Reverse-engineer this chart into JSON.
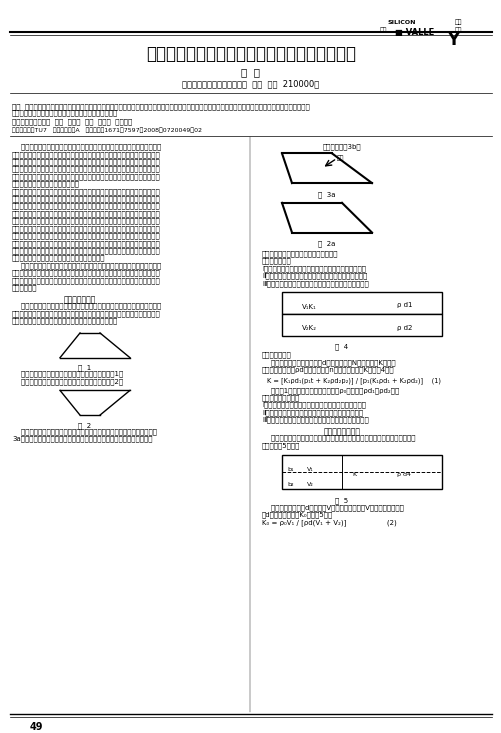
{
  "title": "公路工程施工中灌砂法试验压实度影响因素探究",
  "author": "田  家",
  "affiliation": "（南京西藏路桥工程有限公司  江苏  南京  210000）",
  "journal_name": "SILICON\nVALLE",
  "journal_cn": "工程\n科学",
  "journal_tag": "硅谷",
  "abstract_label": "【摘  要】",
  "abstract_text": "灌砂法试验是公路工程路基和基层（底基层）施工中现场压实度检测的标准方法，对试验操作过程中一些细节问题的注意有助于提高检测结果的准确性和可靠性，对真实反映公路工程质量具有重要的作用。",
  "keywords_label": "【关键词】",
  "keywords_text": "公路工程  施工  灌砂法  试验  压实度  影响因素",
  "classification": "中图分类号：TU7   文献标识码：A   文章编号：1671－7597【2008】0720049－02",
  "body_col1": [
    "    对于公路工程施工现场检测，压实度在路基土方和路面基层（底基层）中属于全检项目和关键项目，各级部门都给予了高度重视。为了反映工程项目压实质量，相继研究了不少检测方法，诸如环刀法、灌砂法、钻芯法、核子法等，各种方法都具有实际用处，都有优缺点，但单从精度来讲，灌砂法无疑为首选，所以灌砂法作为压实度检测的标准方法，适于在野视试验中采用。环刀法由于正假性控制困难，无法真实反映整个压实度",
    "的压实情况，即使在压实是中间取样也无法准确反映，这是由于整个压实层压密程度并非从上到下线性递减造成。另外，环刀法由于试样量平的重要，只适于细粒土的检测。对于钻芯法，由于钻芯过程中，需要先钻头进行冲击，要求对钻进进行冲液；从而要求在整个过程中进行冲水，客易导致试件含水量增大。而不适宜在需要通过检测试件含水量来检测压实度的工程项目中，仅适宜在无需检测含水量来检测压实度的适用范围及大量无机混合料路层（底基层）。对于核子法，由于采用的是同位素注检测土样密度和含水量，影响因素多，误差较大，只适于施工过程中快速评定，不适用各种验试验或成收试验。而对于灌砂法，除了精度高，可用作最试验检外，正有适用范围大的优点，仅不适于大孔洞或大孔隙材料的检测，而这些材料很少在现代公路工程中使用。",
    "    由上所述，灌砂法在现代公路工程施工中具有举足轻重的作用，必须认真掌握其使用过程和方法，并对其操作过程中各种影响因素进行熟悉和了解，避免因此而影响试验的准确性和可靠性，现就灌砂法试验过程中影响检测结果精度的因素进行探究。",
    "    一、量砂的影响",
    "    量砂是灌砂法试验过程中从不可少的材料。由于灌砂法是采用置换量进行检测，所以置换材料的密度对检测结果的精确至关重要，准确测量量砂的密度以及保持量砂密度在检测过程中的稳定性是确保检测结果准确"
  ],
  "body_col2_top": [
    "果最大，如图3b，"
  ],
  "fig2a_label": "图  2a",
  "fig2b_label": "图  3a",
  "fig3_text": [
    "如刚穿越检测层，此种情况规律发育定。",
    "上下层材料一致",
    "Ⅰ、若下层土样压实度大于上层，烙导检检测结果偏大。",
    "Ⅱ、若下层土样压实等于上层，烙对检测结果没有影响。",
    "Ⅲ、若下层土样压实度小于上层，烙导级检测结果偏小。"
  ],
  "fig4_label": "图  4",
  "fig4_rho1": "ρ d1",
  "fig4_rho2": "ρ d2",
  "fig4_v1k1": "V₁K₁",
  "fig4_v2k2": "V₂K₂",
  "col2_bottom": [
    "上下层材料不同",
    "    假设上层材料最大干密度为d，土样体积为N，压实度为K，下层材料最大干密度为ρd，土样体积为n，实测压实度为K。如图4，则"
  ],
  "formula1": "K = [K₁ρd₁(p₁t + K₂ρd₂p₂)] / [p₁(K₁ρd₁ + K₂ρd₂)]   (1)",
  "col2_formula_text": [
    "从式（1）可以看出，当量砂密度为ρ₀却混入了ρd₁和ρd₂层土",
    "样于上下样宁的示例"
  ],
  "col2_continue": [
    "Ⅰ、若下层土样压实度大于上层，烙导检检测结果偏大。",
    "Ⅱ、若下层土样压实等于上层，对检测结果没有影响。",
    "Ⅲ、若下层土样压实度小于上层，烙导级检测结果偏小。",
    "    二、压实层厚程度",
    "    压实层厚度，压密情况，材料性质都影对密实度有影响，检测结果还与一些量",
    "有关，如图5所示。"
  ],
  "fig5_label": "图  5",
  "fig5_rho": "ρ d4",
  "col2_bottom2": [
    "    假设上层压实度为d，体积为V，规则四棱体形为V，材料最大干密度为d。实测压实度为K₀。如图5，则",
    "K₀ = ρ₀V₁ / [ρd(V₁ + V₂)]   (2)"
  ],
  "page_num": "49",
  "background_color": "#ffffff",
  "text_color": "#000000",
  "line_color": "#000000"
}
